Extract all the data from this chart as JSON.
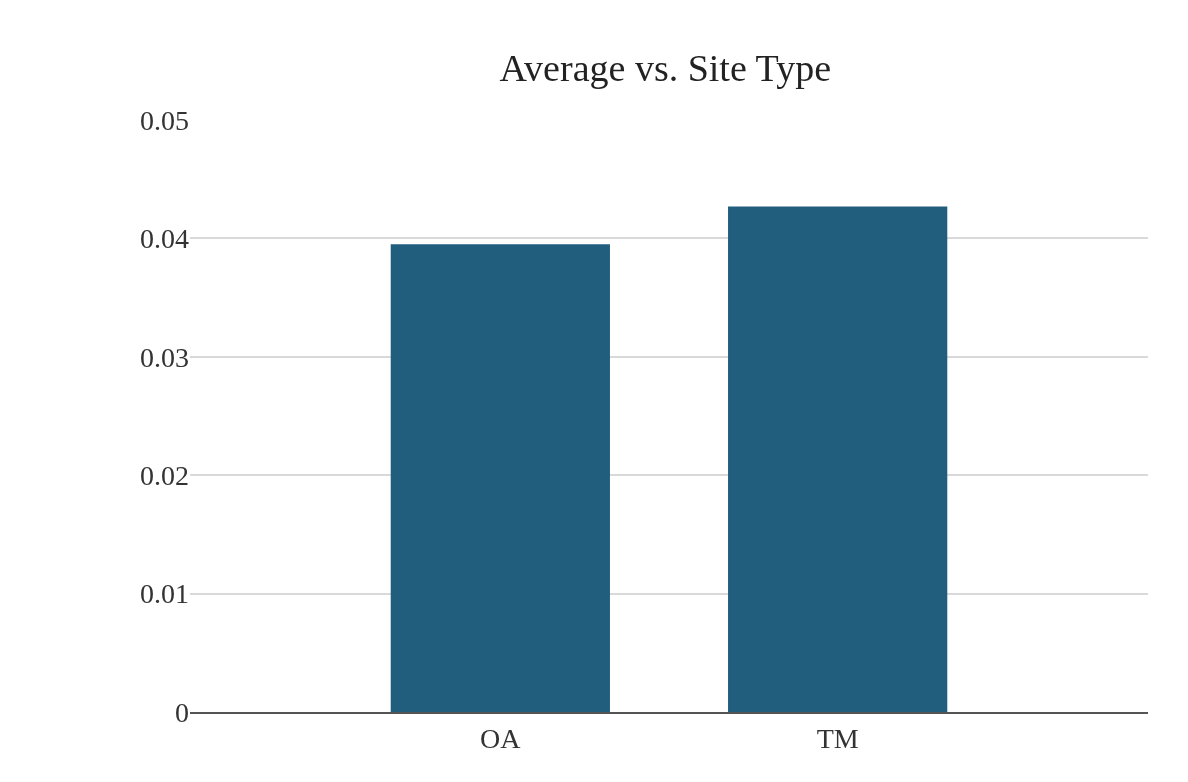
{
  "chart_data": {
    "type": "bar",
    "title": "Average vs. Site Type",
    "categories": [
      "OA",
      "TM"
    ],
    "values": [
      0.0395,
      0.0427
    ],
    "color": "#215e7e",
    "ylim": [
      0,
      0.05
    ],
    "yticks": [
      {
        "value": 0,
        "label": "0"
      },
      0.01,
      0.02,
      0.03,
      0.04,
      0.05
    ],
    "grid": "y"
  }
}
